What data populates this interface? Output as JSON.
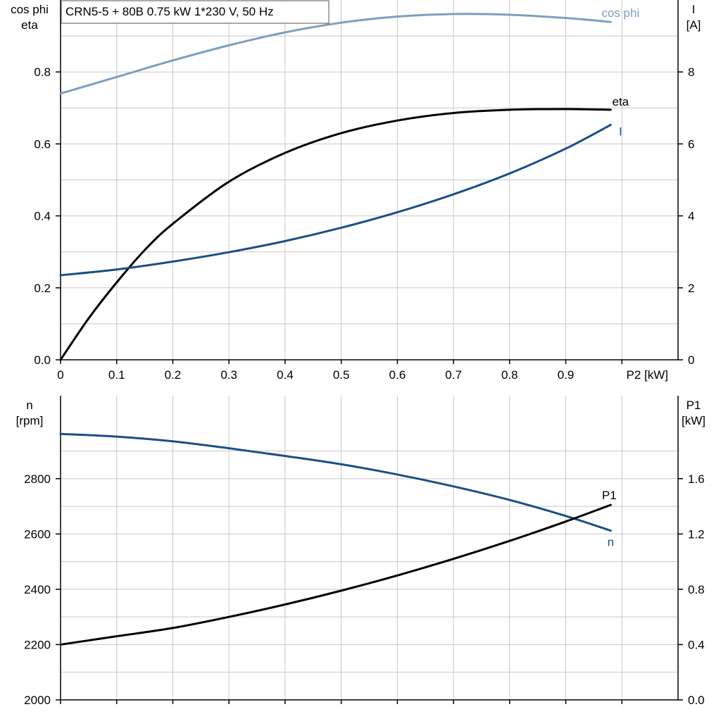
{
  "chart_data": [
    {
      "type": "line",
      "title": "CRN5-5 + 80B   0.75 kW   1*230 V, 50 Hz",
      "xlabel": "P2 [kW]",
      "xlim": [
        0,
        1.1
      ],
      "x_ticks": [
        "0",
        "0.1",
        "0.2",
        "0.3",
        "0.4",
        "0.5",
        "0.6",
        "0.7",
        "0.8",
        "0.9"
      ],
      "x_tick_values": [
        0,
        0.1,
        0.2,
        0.3,
        0.4,
        0.5,
        0.6,
        0.7,
        0.8,
        0.9
      ],
      "ylabel_left": [
        "cos phi",
        "eta"
      ],
      "ylim_left": [
        0,
        1.0
      ],
      "y_ticks_left": [
        "0.0",
        "0.2",
        "0.4",
        "0.6",
        "0.8"
      ],
      "y_tick_values_left": [
        0,
        0.2,
        0.4,
        0.6,
        0.8
      ],
      "ylabel_right": [
        "I",
        "[A]"
      ],
      "ylim_right": [
        0,
        10
      ],
      "y_ticks_right": [
        "0",
        "2",
        "4",
        "6",
        "8"
      ],
      "y_tick_values_right": [
        0,
        2,
        4,
        6,
        8
      ],
      "grid": true,
      "series": [
        {
          "name": "cos phi",
          "axis": "left",
          "color": "#7e9fbc",
          "x": [
            0,
            0.1,
            0.2,
            0.3,
            0.4,
            0.5,
            0.6,
            0.7,
            0.8,
            0.9,
            0.98
          ],
          "y": [
            0.74,
            0.786,
            0.832,
            0.874,
            0.91,
            0.937,
            0.954,
            0.961,
            0.959,
            0.95,
            0.939
          ]
        },
        {
          "name": "eta",
          "axis": "left",
          "color": "#000000",
          "x": [
            0,
            0.05,
            0.1,
            0.15,
            0.2,
            0.3,
            0.4,
            0.5,
            0.6,
            0.7,
            0.8,
            0.9,
            0.98
          ],
          "y": [
            0.0,
            0.115,
            0.215,
            0.305,
            0.378,
            0.495,
            0.575,
            0.63,
            0.665,
            0.686,
            0.695,
            0.697,
            0.695
          ]
        },
        {
          "name": "I",
          "axis": "right",
          "color": "#1a4f86",
          "x": [
            0,
            0.1,
            0.2,
            0.3,
            0.4,
            0.5,
            0.6,
            0.7,
            0.8,
            0.9,
            0.98
          ],
          "y": [
            2.35,
            2.51,
            2.73,
            2.99,
            3.3,
            3.67,
            4.1,
            4.6,
            5.18,
            5.87,
            6.53
          ]
        }
      ]
    },
    {
      "type": "line",
      "xlim": [
        0,
        1.1
      ],
      "ylabel_left": [
        "n",
        "[rpm]"
      ],
      "ylim_left": [
        2000,
        3100
      ],
      "y_ticks_left": [
        "2000",
        "2200",
        "2400",
        "2600",
        "2800"
      ],
      "y_tick_values_left": [
        2000,
        2200,
        2400,
        2600,
        2800
      ],
      "ylabel_right": [
        "P1",
        "[kW]"
      ],
      "ylim_right": [
        0,
        2.2
      ],
      "y_ticks_right": [
        "0.0",
        "0.4",
        "0.8",
        "1.2",
        "1.6"
      ],
      "y_tick_values_right": [
        0,
        0.4,
        0.8,
        1.2,
        1.6
      ],
      "grid": true,
      "series": [
        {
          "name": "n",
          "axis": "left",
          "color": "#1a4f86",
          "x": [
            0,
            0.1,
            0.2,
            0.3,
            0.4,
            0.5,
            0.6,
            0.7,
            0.8,
            0.9,
            0.98
          ],
          "y": [
            2962,
            2952,
            2935,
            2910,
            2882,
            2852,
            2815,
            2772,
            2723,
            2665,
            2612
          ]
        },
        {
          "name": "P1",
          "axis": "right",
          "color": "#000000",
          "x": [
            0,
            0.1,
            0.2,
            0.3,
            0.4,
            0.5,
            0.6,
            0.7,
            0.8,
            0.9,
            0.98
          ],
          "y": [
            0.4,
            0.46,
            0.52,
            0.6,
            0.69,
            0.79,
            0.9,
            1.02,
            1.15,
            1.29,
            1.41
          ]
        }
      ]
    }
  ]
}
